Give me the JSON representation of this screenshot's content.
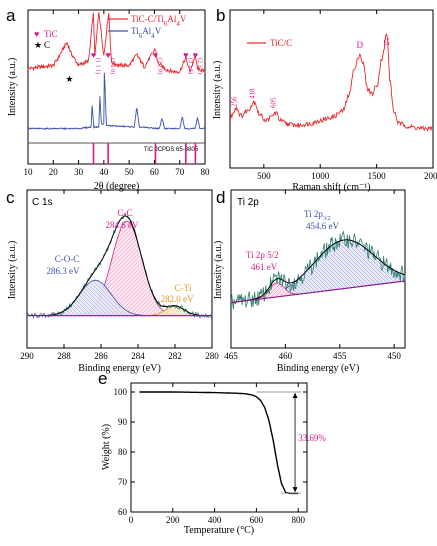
{
  "chart_data": [
    {
      "panel": "a",
      "type": "line",
      "xlabel": "2θ (degree)",
      "ylabel": "Intensity (a.u.)",
      "xlim": [
        10,
        80
      ],
      "xticks": [
        10,
        20,
        30,
        40,
        50,
        60,
        70,
        80
      ],
      "legend": {
        "placement": "top-right"
      },
      "markers_legend": [
        {
          "symbol": "♥",
          "label": "TiC",
          "color": "#d81b8a"
        },
        {
          "symbol": "★",
          "label": "C",
          "color": "#000000"
        }
      ],
      "series": [
        {
          "name": "TiC-C/Ti6Al4V",
          "color": "#e8262a",
          "x": [
            10,
            20,
            22,
            24,
            25.5,
            27,
            30,
            34,
            35.8,
            36.5,
            38,
            40,
            41.9,
            43,
            46,
            50,
            53,
            56,
            60.4,
            61.2,
            64,
            67,
            70,
            72.4,
            74,
            76.2,
            77,
            80
          ],
          "y": [
            0.62,
            0.64,
            0.69,
            0.75,
            0.79,
            0.72,
            0.64,
            0.67,
            0.98,
            0.7,
            0.99,
            0.7,
            0.99,
            0.66,
            0.64,
            0.64,
            0.71,
            0.63,
            0.75,
            0.66,
            0.62,
            0.6,
            0.6,
            0.69,
            0.6,
            0.7,
            0.62,
            0.6
          ]
        },
        {
          "name": "Ti6Al4V",
          "color": "#3a4fb0",
          "x": [
            10,
            30,
            35,
            35.3,
            36,
            38,
            38.4,
            39,
            40,
            40.2,
            41,
            52,
            53,
            54,
            62,
            63,
            64,
            70,
            71,
            72,
            76,
            77,
            78,
            80
          ],
          "y": [
            0.23,
            0.23,
            0.24,
            0.4,
            0.24,
            0.24,
            0.45,
            0.26,
            0.26,
            0.62,
            0.25,
            0.24,
            0.37,
            0.24,
            0.23,
            0.3,
            0.23,
            0.23,
            0.31,
            0.23,
            0.23,
            0.3,
            0.23,
            0.23
          ]
        }
      ],
      "reference": {
        "label": "TiC JCPDS 65-8805",
        "positions": [
          35.9,
          41.7,
          60.4,
          72.4,
          76.2
        ]
      },
      "peak_labels": [
        {
          "x": 35.9,
          "text": "(1 1 1)"
        },
        {
          "x": 41.7,
          "text": "(2 0 0)"
        },
        {
          "x": 60.4,
          "text": "(2 2 0)"
        },
        {
          "x": 72.4,
          "text": "(3 1 1)"
        },
        {
          "x": 76.2,
          "text": "(2 2 2)"
        }
      ],
      "c_peak": 26
    },
    {
      "panel": "b",
      "type": "line",
      "xlabel": "Raman shift (cm⁻¹)",
      "ylabel": "Intensity (a.u.)",
      "xlim": [
        200,
        2000
      ],
      "xticks": [
        500,
        1000,
        1500,
        2000
      ],
      "legend": {
        "placement": "top-left"
      },
      "series": [
        {
          "name": "TiC/C",
          "color": "#e8262a",
          "x": [
            200,
            256,
            300,
            350,
            418,
            460,
            520,
            560,
            605,
            650,
            700,
            800,
            900,
            1000,
            1100,
            1200,
            1250,
            1300,
            1350,
            1380,
            1420,
            1460,
            1500,
            1550,
            1590,
            1620,
            1650,
            1700,
            1800,
            1900,
            2000
          ],
          "y": [
            0.32,
            0.38,
            0.33,
            0.36,
            0.42,
            0.34,
            0.3,
            0.32,
            0.35,
            0.3,
            0.28,
            0.27,
            0.28,
            0.3,
            0.32,
            0.36,
            0.45,
            0.62,
            0.72,
            0.66,
            0.5,
            0.47,
            0.52,
            0.7,
            0.85,
            0.55,
            0.36,
            0.28,
            0.26,
            0.25,
            0.25
          ]
        }
      ],
      "annotations": [
        {
          "x": 1350,
          "text": "D"
        },
        {
          "x": 1590,
          "text": "G"
        },
        {
          "x": 256,
          "text": "256"
        },
        {
          "x": 418,
          "text": "418"
        },
        {
          "x": 605,
          "text": "605"
        }
      ]
    },
    {
      "panel": "c",
      "type": "area",
      "title": "C 1s",
      "xlabel": "Binding energy (eV)",
      "ylabel": "Intensity (a.u.)",
      "xlim": [
        290,
        280
      ],
      "xticks": [
        290,
        288,
        286,
        284,
        282,
        280
      ],
      "components": [
        {
          "label": "C-C",
          "value": "284.6 eV",
          "center": 284.6,
          "fwhm": 1.9,
          "height": 0.8,
          "color": "#d81b8a"
        },
        {
          "label": "C-O-C",
          "value": "286.3 eV",
          "center": 286.3,
          "fwhm": 2.0,
          "height": 0.3,
          "color": "#3a4fb0"
        },
        {
          "label": "C-Ti",
          "value": "282.0 eV",
          "center": 282.0,
          "fwhm": 1.2,
          "height": 0.08,
          "color": "#e8931e"
        }
      ],
      "background": {
        "from": [
          290,
          0.02
        ],
        "to": [
          280,
          0.02
        ]
      }
    },
    {
      "panel": "d",
      "type": "area",
      "title": "Ti 2p",
      "xlabel": "Binding energy (eV)",
      "ylabel": "Intensity (a.u.)",
      "xlim": [
        465,
        449
      ],
      "xticks": [
        465,
        460,
        455,
        450
      ],
      "components": [
        {
          "label": "Ti 2p3/2",
          "value": "454.6 eV",
          "center": 454.6,
          "fwhm": 6.5,
          "height": 0.45,
          "color": "#3a4fb0"
        },
        {
          "label": "Ti 2p 5/2",
          "value": "461 eV",
          "center": 460.8,
          "fwhm": 1.6,
          "height": 0.13,
          "color": "#d81b8a"
        }
      ],
      "background": {
        "from": [
          465,
          0.05
        ],
        "to": [
          449,
          0.25
        ]
      }
    },
    {
      "panel": "e",
      "type": "line",
      "xlabel": "Temperature (°C)",
      "ylabel": "Weight (%)",
      "xlim": [
        0,
        800
      ],
      "ylim": [
        60,
        100
      ],
      "xticks": [
        0,
        200,
        400,
        600,
        800
      ],
      "yticks": [
        60,
        70,
        80,
        90,
        100
      ],
      "series": [
        {
          "name": "",
          "color": "#000000",
          "x": [
            0,
            100,
            200,
            300,
            400,
            500,
            550,
            580,
            600,
            620,
            640,
            660,
            680,
            700,
            720,
            740,
            760,
            800
          ],
          "y": [
            100,
            100,
            100,
            99.9,
            99.8,
            99.6,
            99.4,
            99.0,
            98.4,
            97.2,
            94.8,
            90.5,
            84.0,
            76.0,
            69.5,
            66.5,
            66.2,
            66.2
          ]
        }
      ],
      "annotations": [
        {
          "text": "33.69%",
          "from": 100,
          "to": 66.3,
          "x": 785
        }
      ]
    }
  ]
}
